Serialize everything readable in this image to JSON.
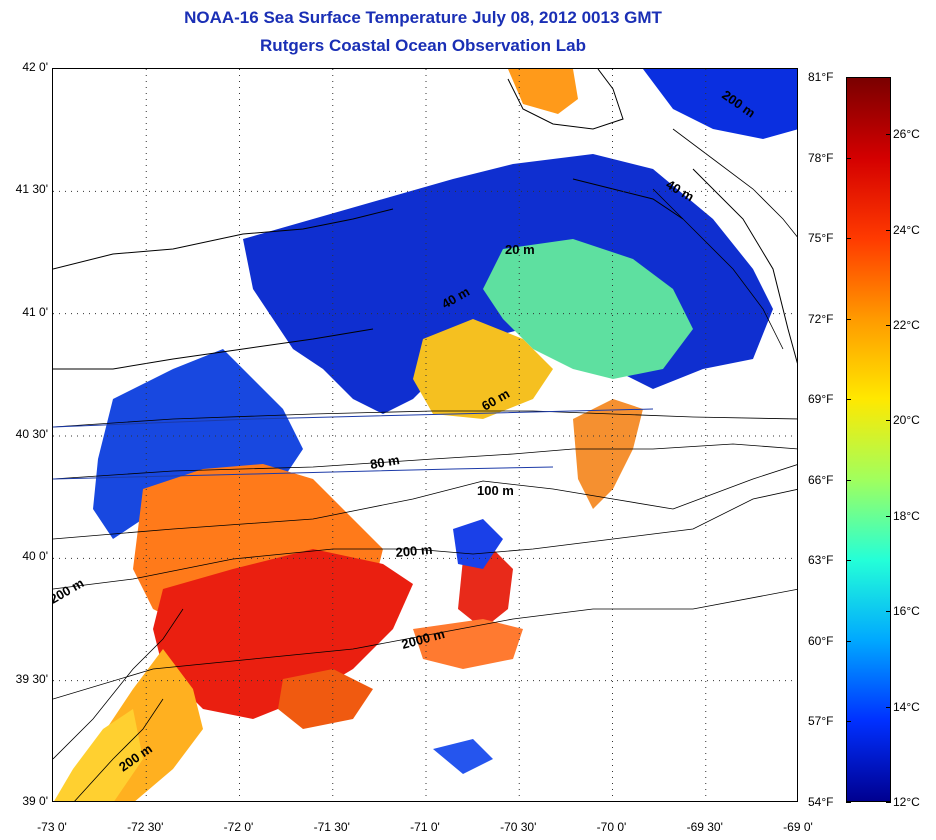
{
  "title": {
    "line1": "NOAA-16 Sea Surface Temperature July 08, 2012 0013 GMT",
    "line2": "Rutgers Coastal Ocean Observation Lab"
  },
  "map": {
    "lat_labels": [
      "42 0'",
      "41 30'",
      "41 0'",
      "40 30'",
      "40 0'",
      "39 30'",
      "39 0'"
    ],
    "lon_labels": [
      "-73 0'",
      "-72 30'",
      "-72 0'",
      "-71 30'",
      "-71 0'",
      "-70 30'",
      "-70 0'",
      "-69 30'",
      "-69 0'"
    ],
    "lat_range": [
      39.0,
      42.0
    ],
    "lon_range": [
      -73.0,
      -69.0
    ],
    "grid": "dotted",
    "isobath_labels": [
      "20 m",
      "40 m",
      "60 m",
      "80 m",
      "100 m",
      "200 m",
      "200 m",
      "2000 m",
      "200 m",
      "40 m",
      "200 m"
    ],
    "colors": {
      "land": "#ffffff",
      "nodata": "#ffffff",
      "contour": "#000000",
      "track_line": "#1c3aa8"
    }
  },
  "colorbar": {
    "fahrenheit_labels": [
      "81°F",
      "78°F",
      "75°F",
      "72°F",
      "69°F",
      "66°F",
      "63°F",
      "60°F",
      "57°F",
      "54°F"
    ],
    "celsius_labels": [
      "26°C",
      "24°C",
      "22°C",
      "20°C",
      "18°C",
      "16°C",
      "14°C",
      "12°C"
    ],
    "range_celsius": [
      12,
      27.2
    ],
    "colors": [
      "#7a0000",
      "#d40000",
      "#ff3a00",
      "#ff9a00",
      "#ffe800",
      "#a0ff5e",
      "#24ffd8",
      "#00a8ff",
      "#0030ff",
      "#000090"
    ]
  }
}
